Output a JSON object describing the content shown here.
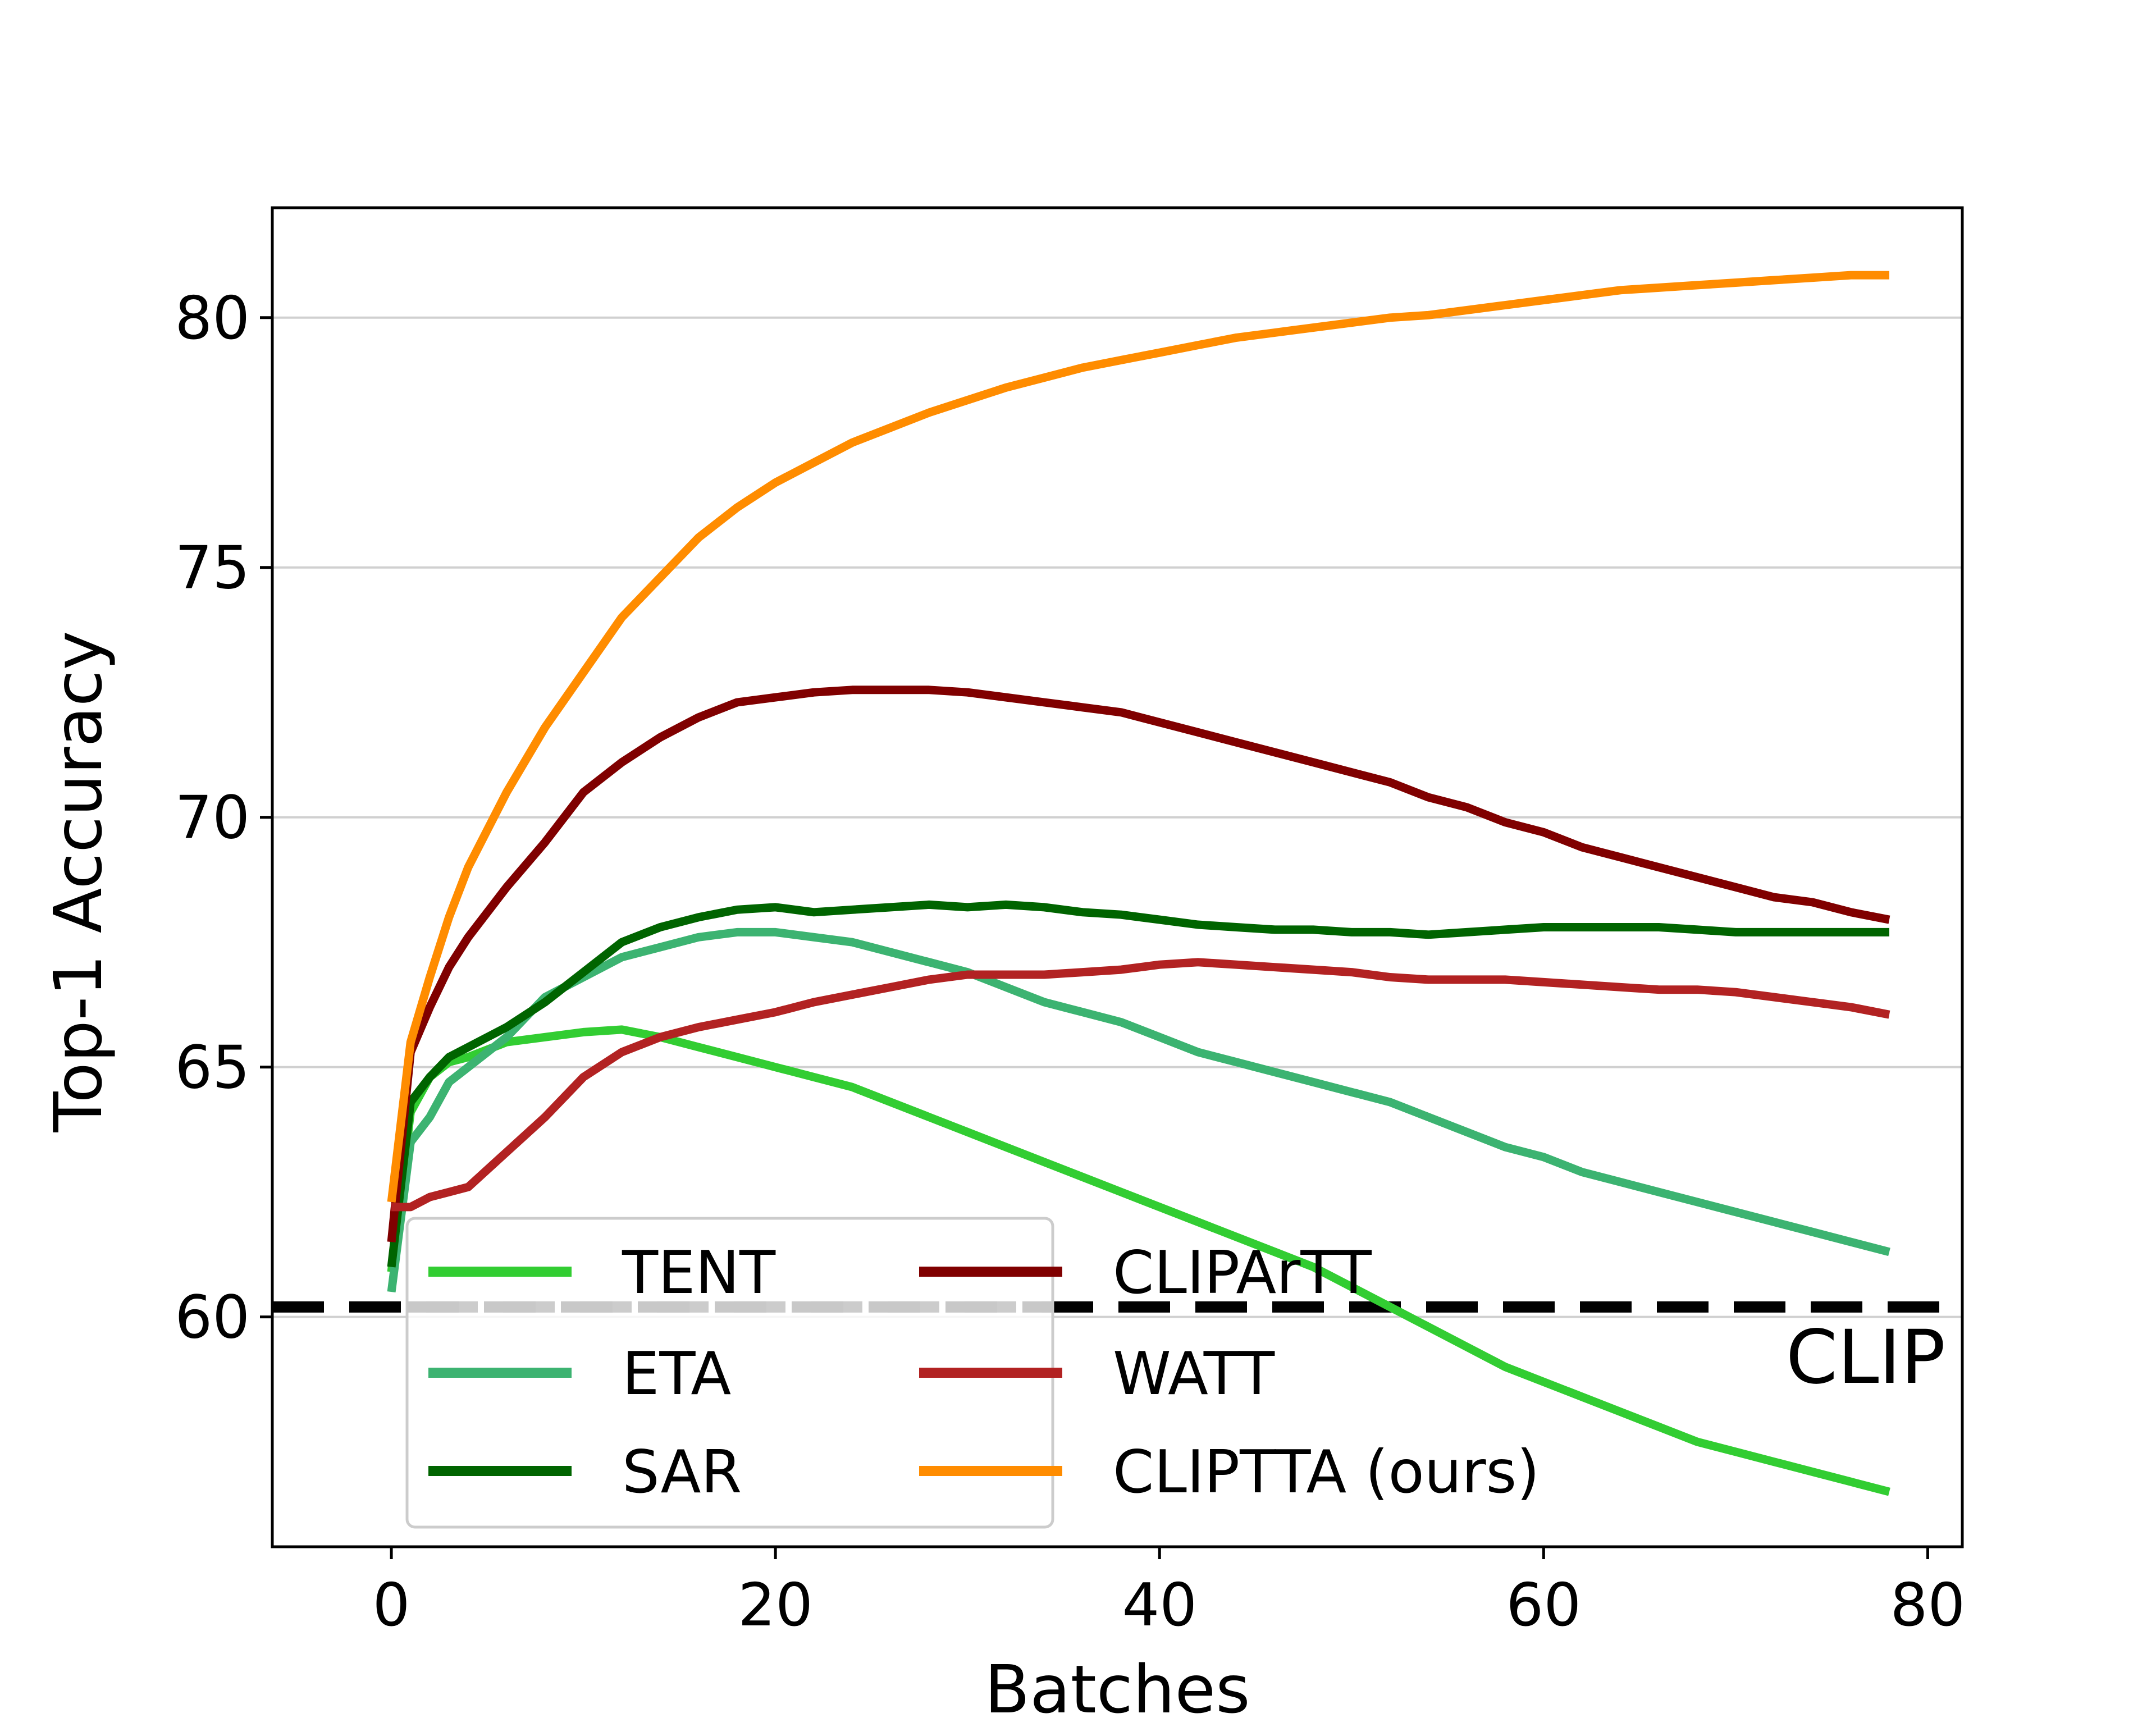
{
  "chart_data": {
    "type": "line",
    "title": "",
    "xlabel": "Batches",
    "ylabel": "Top-1 Accuracy",
    "xlim": [
      -6.2,
      81.8
    ],
    "ylim": [
      55.4,
      82.2
    ],
    "xticks": [
      0,
      20,
      40,
      60,
      80
    ],
    "yticks": [
      60,
      65,
      70,
      75,
      80
    ],
    "grid": "horizontal",
    "legend_location": "lower-center",
    "x": [
      0,
      1,
      2,
      3,
      4,
      6,
      8,
      10,
      12,
      14,
      16,
      18,
      20,
      22,
      24,
      26,
      28,
      30,
      32,
      34,
      36,
      38,
      40,
      42,
      44,
      46,
      48,
      50,
      52,
      54,
      56,
      58,
      60,
      62,
      64,
      66,
      68,
      70,
      72,
      74,
      76,
      78
    ],
    "series": [
      {
        "name": "TENT",
        "color": "#32cd32",
        "values": [
          60.9,
          64.1,
          64.8,
          65.1,
          65.2,
          65.5,
          65.6,
          65.7,
          65.75,
          65.6,
          65.4,
          65.2,
          65.0,
          64.8,
          64.6,
          64.3,
          64.0,
          63.7,
          63.4,
          63.1,
          62.8,
          62.5,
          62.2,
          61.9,
          61.6,
          61.3,
          61.0,
          60.6,
          60.2,
          59.8,
          59.4,
          59.0,
          58.7,
          58.4,
          58.1,
          57.8,
          57.5,
          57.3,
          57.1,
          56.9,
          56.7,
          56.5
        ]
      },
      {
        "name": "ETA",
        "color": "#3cb371",
        "values": [
          60.5,
          63.5,
          64.0,
          64.7,
          65.0,
          65.6,
          66.4,
          66.8,
          67.2,
          67.4,
          67.6,
          67.7,
          67.7,
          67.6,
          67.5,
          67.3,
          67.1,
          66.9,
          66.6,
          66.3,
          66.1,
          65.9,
          65.6,
          65.3,
          65.1,
          64.9,
          64.7,
          64.5,
          64.3,
          64.0,
          63.7,
          63.4,
          63.2,
          62.9,
          62.7,
          62.5,
          62.3,
          62.1,
          61.9,
          61.7,
          61.5,
          61.3
        ]
      },
      {
        "name": "SAR",
        "color": "#006400",
        "values": [
          61.0,
          64.3,
          64.8,
          65.2,
          65.4,
          65.8,
          66.3,
          66.9,
          67.5,
          67.8,
          68.0,
          68.15,
          68.2,
          68.1,
          68.15,
          68.2,
          68.25,
          68.2,
          68.25,
          68.2,
          68.1,
          68.05,
          67.95,
          67.85,
          67.8,
          67.75,
          67.75,
          67.7,
          67.7,
          67.65,
          67.7,
          67.75,
          67.8,
          67.8,
          67.8,
          67.8,
          67.75,
          67.7,
          67.7,
          67.7,
          67.7,
          67.7
        ]
      },
      {
        "name": "CLIPArTT",
        "color": "#800000",
        "values": [
          61.5,
          65.3,
          66.2,
          67.0,
          67.6,
          68.6,
          69.5,
          70.5,
          71.1,
          71.6,
          72.0,
          72.3,
          72.4,
          72.5,
          72.55,
          72.55,
          72.55,
          72.5,
          72.4,
          72.3,
          72.2,
          72.1,
          71.9,
          71.7,
          71.5,
          71.3,
          71.1,
          70.9,
          70.7,
          70.4,
          70.2,
          69.9,
          69.7,
          69.4,
          69.2,
          69.0,
          68.8,
          68.6,
          68.4,
          68.3,
          68.1,
          67.95
        ]
      },
      {
        "name": "WATT",
        "color": "#b22222",
        "values": [
          62.2,
          62.2,
          62.4,
          62.5,
          62.6,
          63.3,
          64.0,
          64.8,
          65.3,
          65.6,
          65.8,
          65.95,
          66.1,
          66.3,
          66.45,
          66.6,
          66.75,
          66.85,
          66.85,
          66.85,
          66.9,
          66.95,
          67.05,
          67.1,
          67.05,
          67.0,
          66.95,
          66.9,
          66.8,
          66.75,
          66.75,
          66.75,
          66.7,
          66.65,
          66.6,
          66.55,
          66.55,
          66.5,
          66.4,
          66.3,
          66.2,
          66.05
        ]
      },
      {
        "name": "CLIPTTA (ours)",
        "color": "#ff8c00",
        "values": [
          62.3,
          65.5,
          66.8,
          68.0,
          69.0,
          70.5,
          71.8,
          72.9,
          74.0,
          74.8,
          75.6,
          76.2,
          76.7,
          77.1,
          77.5,
          77.8,
          78.1,
          78.35,
          78.6,
          78.8,
          79.0,
          79.15,
          79.3,
          79.45,
          79.6,
          79.7,
          79.8,
          79.9,
          80.0,
          80.05,
          80.15,
          80.25,
          80.35,
          80.45,
          80.55,
          80.6,
          80.65,
          80.7,
          80.75,
          80.8,
          80.85,
          80.85
        ]
      }
    ],
    "baseline": {
      "name": "CLIP",
      "label": "CLIP",
      "value": 60.2,
      "color": "#000000"
    }
  }
}
